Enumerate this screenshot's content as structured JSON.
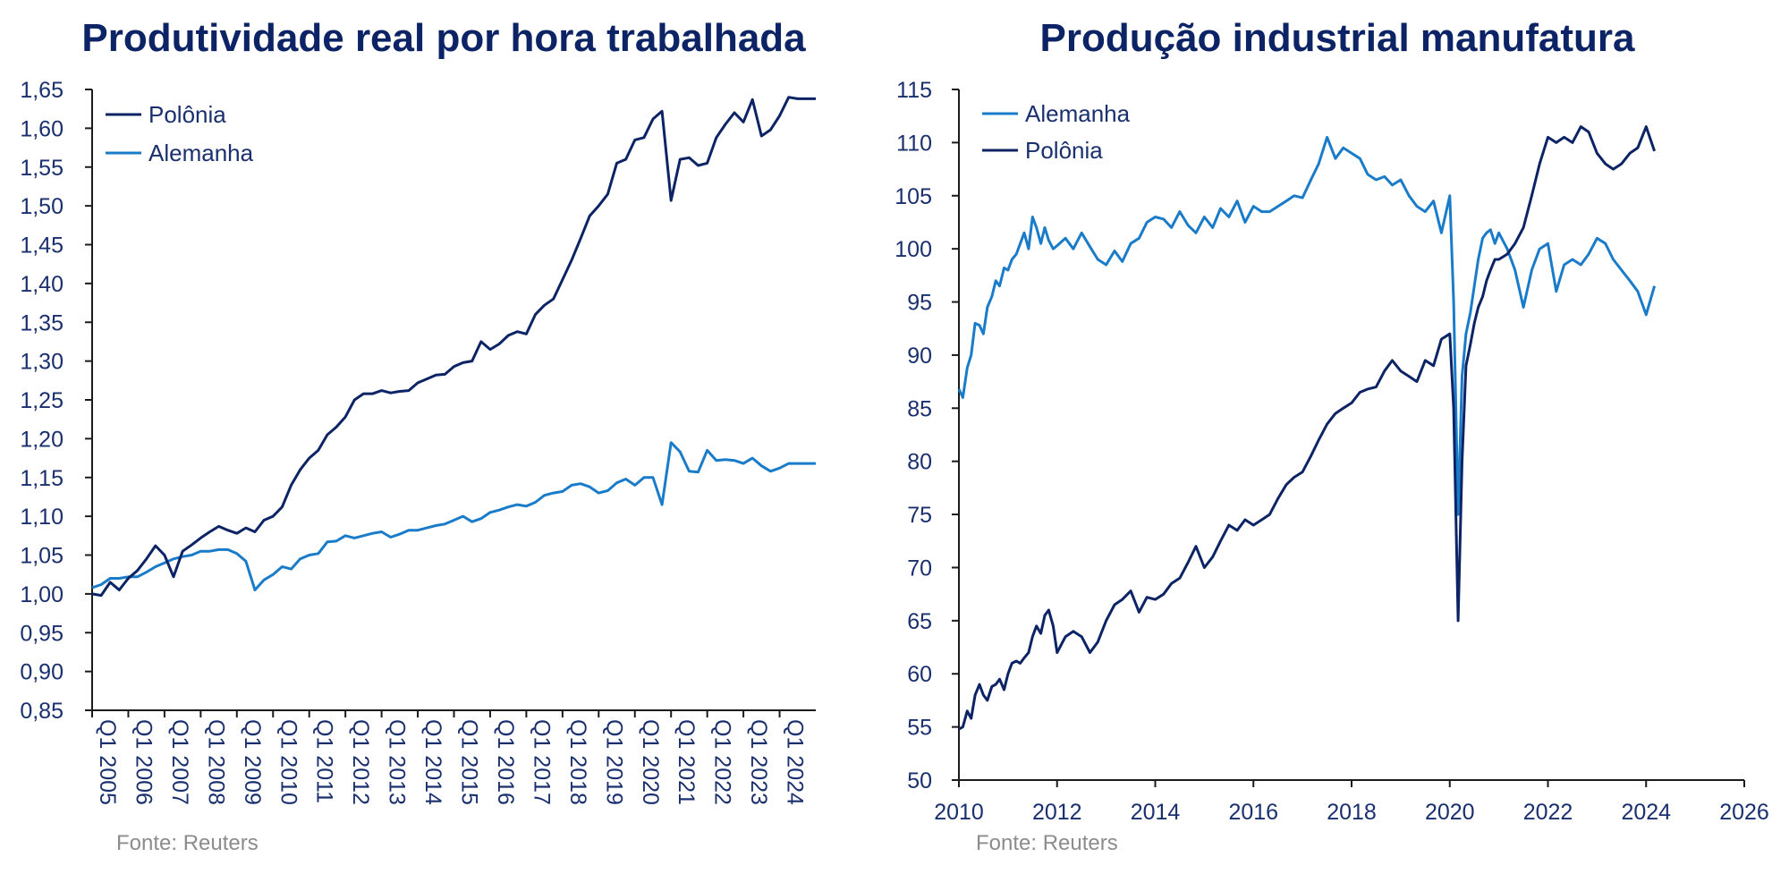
{
  "colors": {
    "polonia": "#0c2465",
    "alemanha": "#1a7cc9",
    "title": "#0c2465",
    "source": "#8c8c8c"
  },
  "chart_data": [
    {
      "type": "line",
      "title": "Produtividade real por hora trabalhada",
      "source": "Fonte: Reuters",
      "ylim": [
        0.85,
        1.65
      ],
      "y_ticks": [
        "1,65",
        "1,60",
        "1,55",
        "1,50",
        "1,45",
        "1,40",
        "1,35",
        "1,30",
        "1,25",
        "1,20",
        "1,15",
        "1,10",
        "1,05",
        "1,00",
        "0,95",
        "0,90",
        "0,85"
      ],
      "x_ticks": [
        "Q1 2005",
        "Q1 2006",
        "Q1 2007",
        "Q1 2008",
        "Q1 2009",
        "Q1 2010",
        "Q1 2011",
        "Q1 2012",
        "Q1 2013",
        "Q1 2014",
        "Q1 2015",
        "Q1 2016",
        "Q1 2017",
        "Q1 2018",
        "Q1 2019",
        "Q1 2020",
        "Q1 2021",
        "Q1 2022",
        "Q1 2023",
        "Q1 2024"
      ],
      "legend_position": "top-left",
      "series": [
        {
          "name": "Polônia",
          "color": "#0c2465",
          "values": [
            1.0,
            0.998,
            1.015,
            1.005,
            1.02,
            1.03,
            1.045,
            1.062,
            1.05,
            1.022,
            1.055,
            1.063,
            1.072,
            1.08,
            1.087,
            1.082,
            1.078,
            1.085,
            1.08,
            1.095,
            1.1,
            1.112,
            1.14,
            1.16,
            1.175,
            1.185,
            1.205,
            1.215,
            1.228,
            1.25,
            1.258,
            1.258,
            1.262,
            1.259,
            1.261,
            1.262,
            1.272,
            1.277,
            1.282,
            1.283,
            1.293,
            1.298,
            1.3,
            1.325,
            1.315,
            1.322,
            1.333,
            1.338,
            1.335,
            1.36,
            1.372,
            1.38,
            1.405,
            1.43,
            1.458,
            1.487,
            1.5,
            1.515,
            1.555,
            1.56,
            1.585,
            1.588,
            1.612,
            1.622,
            1.507,
            1.56,
            1.562,
            1.552,
            1.555,
            1.588,
            1.605,
            1.62,
            1.608,
            1.637,
            1.59,
            1.598,
            1.616,
            1.64,
            1.638,
            1.638,
            1.638
          ]
        },
        {
          "name": "Alemanha",
          "color": "#1a7cc9",
          "values": [
            1.008,
            1.012,
            1.02,
            1.02,
            1.022,
            1.022,
            1.028,
            1.035,
            1.04,
            1.045,
            1.048,
            1.05,
            1.055,
            1.055,
            1.057,
            1.057,
            1.052,
            1.042,
            1.005,
            1.018,
            1.025,
            1.035,
            1.032,
            1.045,
            1.05,
            1.052,
            1.067,
            1.068,
            1.075,
            1.072,
            1.075,
            1.078,
            1.08,
            1.073,
            1.077,
            1.082,
            1.082,
            1.085,
            1.088,
            1.09,
            1.095,
            1.1,
            1.093,
            1.097,
            1.105,
            1.108,
            1.112,
            1.115,
            1.113,
            1.118,
            1.127,
            1.13,
            1.132,
            1.14,
            1.142,
            1.138,
            1.13,
            1.133,
            1.143,
            1.148,
            1.14,
            1.15,
            1.15,
            1.115,
            1.195,
            1.183,
            1.158,
            1.157,
            1.185,
            1.172,
            1.173,
            1.172,
            1.168,
            1.175,
            1.165,
            1.158,
            1.162,
            1.168,
            1.168,
            1.168,
            1.168
          ]
        }
      ]
    },
    {
      "type": "line",
      "title": "Produção industrial manufatura",
      "source": "Fonte: Reuters",
      "xlim": [
        2010,
        2026
      ],
      "ylim": [
        50,
        115
      ],
      "x_ticks": [
        "2010",
        "2012",
        "2014",
        "2016",
        "2018",
        "2020",
        "2022",
        "2024",
        "2026"
      ],
      "y_ticks": [
        "115",
        "110",
        "105",
        "100",
        "95",
        "90",
        "85",
        "80",
        "75",
        "70",
        "65",
        "60",
        "55",
        "50"
      ],
      "legend_position": "top-left",
      "series": [
        {
          "name": "Alemanha",
          "color": "#1a7cc9",
          "x": [
            2010.0,
            2010.08,
            2010.17,
            2010.25,
            2010.33,
            2010.42,
            2010.5,
            2010.58,
            2010.67,
            2010.75,
            2010.83,
            2010.92,
            2011.0,
            2011.08,
            2011.17,
            2011.25,
            2011.33,
            2011.42,
            2011.5,
            2011.58,
            2011.67,
            2011.75,
            2011.83,
            2011.92,
            2012.0,
            2012.17,
            2012.33,
            2012.5,
            2012.67,
            2012.83,
            2013.0,
            2013.17,
            2013.33,
            2013.5,
            2013.67,
            2013.83,
            2014.0,
            2014.17,
            2014.33,
            2014.5,
            2014.67,
            2014.83,
            2015.0,
            2015.17,
            2015.33,
            2015.5,
            2015.67,
            2015.83,
            2016.0,
            2016.17,
            2016.33,
            2016.5,
            2016.67,
            2016.83,
            2017.0,
            2017.17,
            2017.33,
            2017.5,
            2017.67,
            2017.83,
            2018.0,
            2018.17,
            2018.33,
            2018.5,
            2018.67,
            2018.83,
            2019.0,
            2019.17,
            2019.33,
            2019.5,
            2019.67,
            2019.83,
            2020.0,
            2020.08,
            2020.17,
            2020.25,
            2020.33,
            2020.42,
            2020.5,
            2020.58,
            2020.67,
            2020.75,
            2020.83,
            2020.92,
            2021.0,
            2021.17,
            2021.33,
            2021.5,
            2021.67,
            2021.83,
            2022.0,
            2022.17,
            2022.33,
            2022.5,
            2022.67,
            2022.83,
            2023.0,
            2023.17,
            2023.33,
            2023.5,
            2023.67,
            2023.83,
            2024.0,
            2024.17
          ],
          "values": [
            86.8,
            86.0,
            88.8,
            90.0,
            93.0,
            92.8,
            92.0,
            94.5,
            95.5,
            97.0,
            96.5,
            98.2,
            98.0,
            99.0,
            99.5,
            100.5,
            101.5,
            100.0,
            103.0,
            102.0,
            100.5,
            102.0,
            100.8,
            100.0,
            100.3,
            101.0,
            100.0,
            101.5,
            100.2,
            99.0,
            98.5,
            99.8,
            98.8,
            100.5,
            101.0,
            102.5,
            103.0,
            102.8,
            102.0,
            103.5,
            102.2,
            101.5,
            103.0,
            102.0,
            103.8,
            103.0,
            104.5,
            102.5,
            104.0,
            103.5,
            103.5,
            104.0,
            104.5,
            105.0,
            104.8,
            106.5,
            108.0,
            110.5,
            108.5,
            109.5,
            109.0,
            108.5,
            107.0,
            106.5,
            106.8,
            106.0,
            106.5,
            105.0,
            104.0,
            103.5,
            104.5,
            101.5,
            105.0,
            95.0,
            75.0,
            88.0,
            92.0,
            94.0,
            96.5,
            99.0,
            101.0,
            101.5,
            101.8,
            100.5,
            101.5,
            100.0,
            98.0,
            94.5,
            98.0,
            100.0,
            100.5,
            96.0,
            98.5,
            99.0,
            98.5,
            99.5,
            101.0,
            100.5,
            99.0,
            98.0,
            97.0,
            96.0,
            93.8,
            96.5
          ]
        },
        {
          "name": "Polônia",
          "color": "#0c2465",
          "x": [
            2010.0,
            2010.08,
            2010.17,
            2010.25,
            2010.33,
            2010.42,
            2010.5,
            2010.58,
            2010.67,
            2010.75,
            2010.83,
            2010.92,
            2011.0,
            2011.08,
            2011.17,
            2011.25,
            2011.33,
            2011.42,
            2011.5,
            2011.58,
            2011.67,
            2011.75,
            2011.83,
            2011.92,
            2012.0,
            2012.17,
            2012.33,
            2012.5,
            2012.67,
            2012.83,
            2013.0,
            2013.17,
            2013.33,
            2013.5,
            2013.67,
            2013.83,
            2014.0,
            2014.17,
            2014.33,
            2014.5,
            2014.67,
            2014.83,
            2015.0,
            2015.17,
            2015.33,
            2015.5,
            2015.67,
            2015.83,
            2016.0,
            2016.17,
            2016.33,
            2016.5,
            2016.67,
            2016.83,
            2017.0,
            2017.17,
            2017.33,
            2017.5,
            2017.67,
            2017.83,
            2018.0,
            2018.17,
            2018.33,
            2018.5,
            2018.67,
            2018.83,
            2019.0,
            2019.17,
            2019.33,
            2019.5,
            2019.67,
            2019.83,
            2020.0,
            2020.08,
            2020.17,
            2020.25,
            2020.33,
            2020.42,
            2020.5,
            2020.58,
            2020.67,
            2020.75,
            2020.83,
            2020.92,
            2021.0,
            2021.17,
            2021.33,
            2021.5,
            2021.67,
            2021.83,
            2022.0,
            2022.17,
            2022.33,
            2022.5,
            2022.67,
            2022.83,
            2023.0,
            2023.17,
            2023.33,
            2023.5,
            2023.67,
            2023.83,
            2024.0,
            2024.17
          ],
          "values": [
            54.8,
            55.0,
            56.5,
            55.8,
            58.0,
            59.0,
            58.0,
            57.5,
            58.8,
            59.0,
            59.5,
            58.5,
            60.0,
            61.0,
            61.2,
            61.0,
            61.5,
            62.0,
            63.5,
            64.5,
            63.8,
            65.5,
            66.0,
            64.5,
            62.0,
            63.5,
            64.0,
            63.5,
            62.0,
            63.0,
            65.0,
            66.5,
            67.0,
            67.8,
            65.8,
            67.2,
            67.0,
            67.5,
            68.5,
            69.0,
            70.5,
            72.0,
            70.0,
            71.0,
            72.5,
            74.0,
            73.5,
            74.5,
            74.0,
            74.5,
            75.0,
            76.5,
            77.8,
            78.5,
            79.0,
            80.5,
            82.0,
            83.5,
            84.5,
            85.0,
            85.5,
            86.5,
            86.8,
            87.0,
            88.5,
            89.5,
            88.5,
            88.0,
            87.5,
            89.5,
            89.0,
            91.5,
            92.0,
            85.0,
            65.0,
            80.0,
            89.0,
            91.0,
            93.0,
            94.5,
            95.5,
            97.0,
            98.0,
            99.0,
            99.0,
            99.5,
            100.5,
            102.0,
            105.0,
            108.0,
            110.5,
            110.0,
            110.5,
            110.0,
            111.5,
            111.0,
            109.0,
            108.0,
            107.5,
            108.0,
            109.0,
            109.5,
            111.5,
            109.2
          ]
        }
      ]
    }
  ]
}
